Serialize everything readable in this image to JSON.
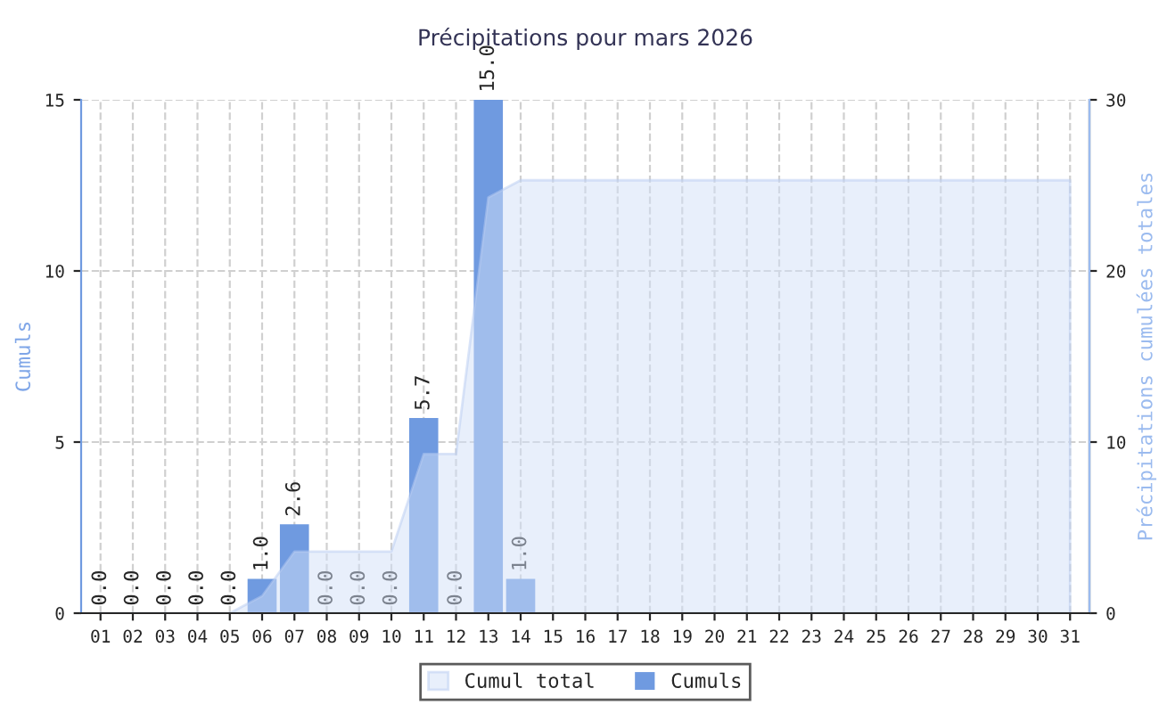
{
  "chart_data": {
    "type": "bar",
    "title": "Précipitations pour mars 2026",
    "ylabel": "Cumuls",
    "y2label": "Précipitations cumulées totales",
    "categories": [
      "01",
      "02",
      "03",
      "04",
      "05",
      "06",
      "07",
      "08",
      "09",
      "10",
      "11",
      "12",
      "13",
      "14",
      "15",
      "16",
      "17",
      "18",
      "19",
      "20",
      "21",
      "22",
      "23",
      "24",
      "25",
      "26",
      "27",
      "28",
      "29",
      "30",
      "31"
    ],
    "series": [
      {
        "name": "Cumul total",
        "type": "area",
        "axis": "y2",
        "color": "#d2dff8",
        "values": [
          0,
          0,
          0,
          0,
          0,
          1.0,
          3.6,
          3.6,
          3.6,
          3.6,
          9.3,
          9.3,
          24.3,
          25.3,
          25.3,
          25.3,
          25.3,
          25.3,
          25.3,
          25.3,
          25.3,
          25.3,
          25.3,
          25.3,
          25.3,
          25.3,
          25.3,
          25.3,
          25.3,
          25.3,
          25.3
        ]
      },
      {
        "name": "Cumuls",
        "color": "#6f9ae0",
        "values": [
          0.0,
          0.0,
          0.0,
          0.0,
          0.0,
          1.0,
          2.6,
          0.0,
          0.0,
          0.0,
          5.7,
          0.0,
          15.0,
          1.0,
          null,
          null,
          null,
          null,
          null,
          null,
          null,
          null,
          null,
          null,
          null,
          null,
          null,
          null,
          null,
          null,
          null
        ],
        "value_labels": [
          "0.0",
          "0.0",
          "0.0",
          "0.0",
          "0.0",
          "1.0",
          "2.6",
          "0.0",
          "0.0",
          "0.0",
          "5.7",
          "0.0",
          "15.0",
          "1.0",
          null,
          null,
          null,
          null,
          null,
          null,
          null,
          null,
          null,
          null,
          null,
          null,
          null,
          null,
          null,
          null,
          null
        ]
      }
    ],
    "ylim": [
      0,
      15
    ],
    "yticks": [
      0,
      5,
      10,
      15
    ],
    "y2lim": [
      0,
      30
    ],
    "y2ticks": [
      0,
      10,
      20,
      30
    ],
    "grid": true,
    "legend": "bottom"
  }
}
